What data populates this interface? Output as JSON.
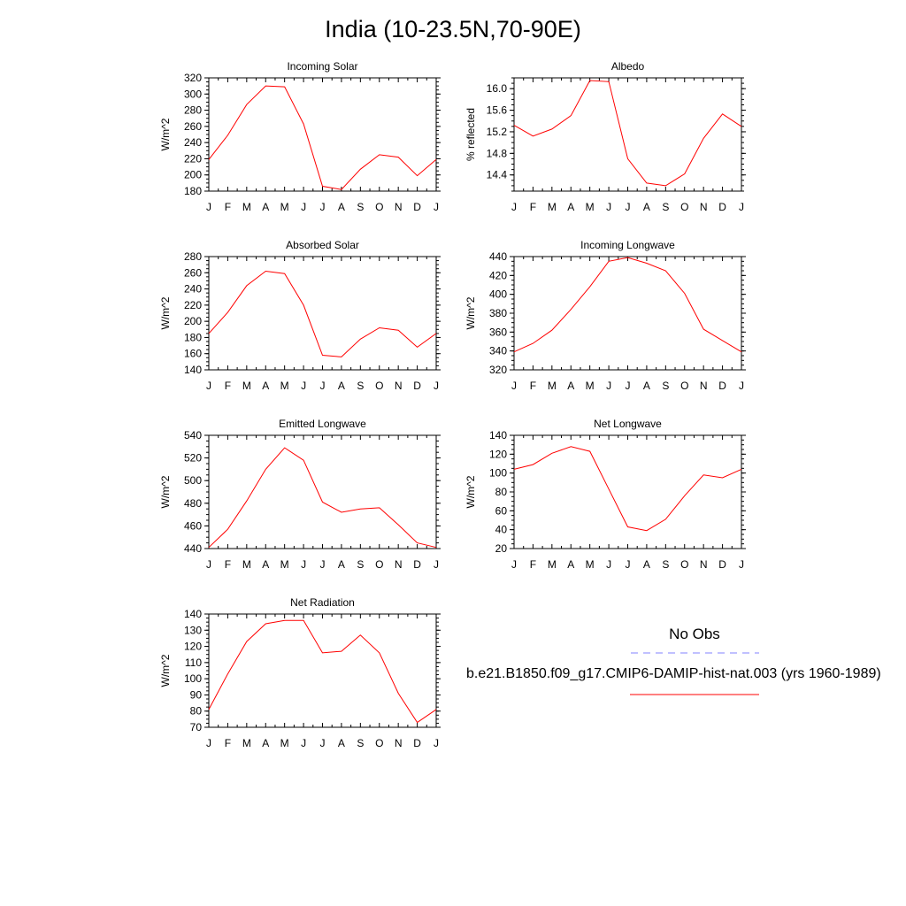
{
  "title": "India (10-23.5N,70-90E)",
  "legend": {
    "obs_label": "No Obs",
    "obs_color": "#8080ff",
    "model_label": "b.e21.B1850.f09_g17.CMIP6-DAMIP-hist-nat.003 (yrs 1960-1989)",
    "model_color": "#ff0000"
  },
  "chart_data": [
    {
      "type": "line",
      "title": "Incoming Solar",
      "ylabel": "W/m^2",
      "x": [
        "J",
        "F",
        "M",
        "A",
        "M",
        "J",
        "J",
        "A",
        "S",
        "O",
        "N",
        "D",
        "J"
      ],
      "ylim": [
        180,
        320
      ],
      "yticks": [
        180,
        200,
        220,
        240,
        260,
        280,
        300,
        320
      ],
      "series": [
        {
          "values": [
            219,
            249,
            287,
            310,
            309,
            263,
            186,
            182,
            207,
            225,
            222,
            199,
            219
          ]
        }
      ]
    },
    {
      "type": "line",
      "title": "Albedo",
      "ylabel": "% reflected",
      "x": [
        "J",
        "F",
        "M",
        "A",
        "M",
        "J",
        "J",
        "A",
        "S",
        "O",
        "N",
        "D",
        "J"
      ],
      "ylim": [
        14.1,
        16.2
      ],
      "yticks": [
        14.4,
        14.8,
        15.2,
        15.6,
        16.0
      ],
      "ytick_labels": [
        "14.4",
        "14.8",
        "15.2",
        "15.6",
        "16.0"
      ],
      "series": [
        {
          "values": [
            15.32,
            15.12,
            15.25,
            15.5,
            16.15,
            16.13,
            14.7,
            14.25,
            14.2,
            14.42,
            15.08,
            15.53,
            15.3
          ]
        }
      ]
    },
    {
      "type": "line",
      "title": "Absorbed Solar",
      "ylabel": "W/m^2",
      "x": [
        "J",
        "F",
        "M",
        "A",
        "M",
        "J",
        "J",
        "A",
        "S",
        "O",
        "N",
        "D",
        "J"
      ],
      "ylim": [
        140,
        280
      ],
      "yticks": [
        140,
        160,
        180,
        200,
        220,
        240,
        260,
        280
      ],
      "series": [
        {
          "values": [
            185,
            211,
            244,
            262,
            259,
            220,
            158,
            156,
            178,
            192,
            189,
            168,
            185
          ]
        }
      ]
    },
    {
      "type": "line",
      "title": "Incoming Longwave",
      "ylabel": "W/m^2",
      "x": [
        "J",
        "F",
        "M",
        "A",
        "M",
        "J",
        "J",
        "A",
        "S",
        "O",
        "N",
        "D",
        "J"
      ],
      "ylim": [
        320,
        440
      ],
      "yticks": [
        320,
        340,
        360,
        380,
        400,
        420,
        440
      ],
      "series": [
        {
          "values": [
            339,
            348,
            362,
            384,
            408,
            435,
            439,
            433,
            425,
            401,
            363,
            351,
            339
          ]
        }
      ]
    },
    {
      "type": "line",
      "title": "Emitted Longwave",
      "ylabel": "W/m^2",
      "x": [
        "J",
        "F",
        "M",
        "A",
        "M",
        "J",
        "J",
        "A",
        "S",
        "O",
        "N",
        "D",
        "J"
      ],
      "ylim": [
        440,
        540
      ],
      "yticks": [
        440,
        460,
        480,
        500,
        520,
        540
      ],
      "series": [
        {
          "values": [
            441,
            457,
            482,
            510,
            529,
            518,
            481,
            472,
            475,
            476,
            461,
            445,
            441
          ]
        }
      ]
    },
    {
      "type": "line",
      "title": "Net Longwave",
      "ylabel": "W/m^2",
      "x": [
        "J",
        "F",
        "M",
        "A",
        "M",
        "J",
        "J",
        "A",
        "S",
        "O",
        "N",
        "D",
        "J"
      ],
      "ylim": [
        20,
        140
      ],
      "yticks": [
        20,
        40,
        60,
        80,
        100,
        120,
        140
      ],
      "series": [
        {
          "values": [
            104,
            109,
            121,
            128,
            123,
            83,
            43,
            39,
            51,
            76,
            98,
            95,
            104
          ]
        }
      ]
    },
    {
      "type": "line",
      "title": "Net Radiation",
      "ylabel": "W/m^2",
      "x": [
        "J",
        "F",
        "M",
        "A",
        "M",
        "J",
        "J",
        "A",
        "S",
        "O",
        "N",
        "D",
        "J"
      ],
      "ylim": [
        70,
        140
      ],
      "yticks": [
        70,
        80,
        90,
        100,
        110,
        120,
        130,
        140
      ],
      "series": [
        {
          "values": [
            81,
            103,
            123,
            134,
            136,
            136,
            116,
            117,
            127,
            116,
            91,
            73,
            81
          ]
        }
      ]
    }
  ]
}
